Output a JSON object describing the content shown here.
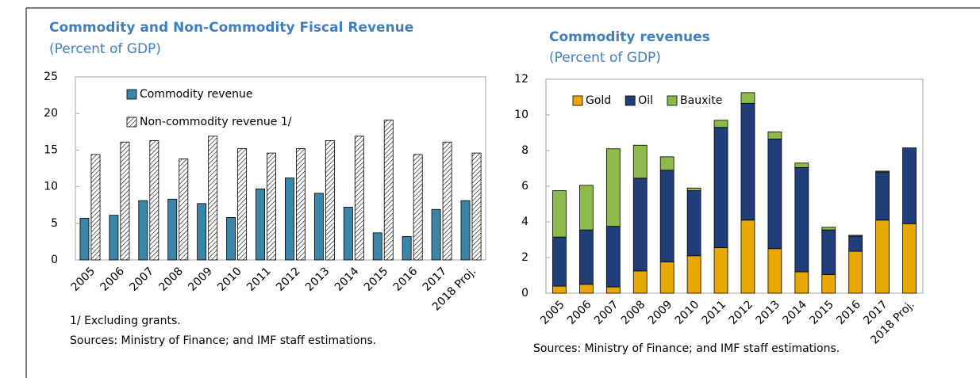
{
  "chart_data": [
    {
      "type": "grouped-bar",
      "title": "Commodity and Non-Commodity Fiscal Revenue",
      "subtitle": "(Percent of GDP)",
      "categories": [
        "2005",
        "2006",
        "2007",
        "2008",
        "2009",
        "2010",
        "2011",
        "2012",
        "2013",
        "2014",
        "2015",
        "2016",
        "2017",
        "2018 Proj."
      ],
      "series": [
        {
          "name": "Commodity revenue",
          "color": "#3b86a8",
          "pattern": "solid",
          "values": [
            5.7,
            6.1,
            8.1,
            8.3,
            7.7,
            5.8,
            9.7,
            11.2,
            9.1,
            7.2,
            3.7,
            3.2,
            6.9,
            8.1
          ]
        },
        {
          "name": "Non-commodity revenue 1/",
          "color": "#000000",
          "pattern": "hatch",
          "values": [
            14.4,
            16.1,
            16.3,
            13.8,
            16.9,
            15.2,
            14.6,
            15.2,
            16.3,
            16.9,
            19.1,
            14.4,
            16.1,
            14.6
          ]
        }
      ],
      "ylim": [
        0,
        25
      ],
      "yticks": [
        0,
        5,
        10,
        15,
        20,
        25
      ],
      "legend": "upper-left",
      "notes": [
        "1/ Excluding grants.",
        "Sources: Ministry of Finance; and IMF  staff estimations."
      ]
    },
    {
      "type": "stacked-bar",
      "title": "Commodity revenues",
      "subtitle": "(Percent of GDP)",
      "categories": [
        "2005",
        "2006",
        "2007",
        "2008",
        "2009",
        "2010",
        "2011",
        "2012",
        "2013",
        "2014",
        "2015",
        "2016",
        "2017",
        "2018 Proj."
      ],
      "series": [
        {
          "name": "Gold",
          "color": "#e8a800",
          "pattern": "solid",
          "values": [
            0.4,
            0.5,
            0.35,
            1.25,
            1.75,
            2.1,
            2.55,
            4.1,
            2.5,
            1.2,
            1.05,
            2.35,
            4.1,
            3.9
          ]
        },
        {
          "name": "Oil",
          "color": "#1f3e7a",
          "pattern": "solid",
          "values": [
            2.75,
            3.05,
            3.4,
            5.2,
            5.15,
            3.65,
            6.75,
            6.55,
            6.15,
            5.85,
            2.5,
            0.85,
            2.7,
            4.25
          ]
        },
        {
          "name": "Bauxite",
          "color": "#8dba4a",
          "pattern": "solid",
          "values": [
            2.6,
            2.5,
            4.35,
            1.85,
            0.75,
            0.15,
            0.4,
            0.6,
            0.4,
            0.25,
            0.15,
            0.05,
            0.05,
            0
          ]
        }
      ],
      "ylim": [
        0,
        12
      ],
      "yticks": [
        0,
        2,
        4,
        6,
        8,
        10,
        12
      ],
      "legend": "upper-left",
      "notes": [
        "Sources: Ministry of Finance; and IMF  staff estimations."
      ]
    }
  ]
}
